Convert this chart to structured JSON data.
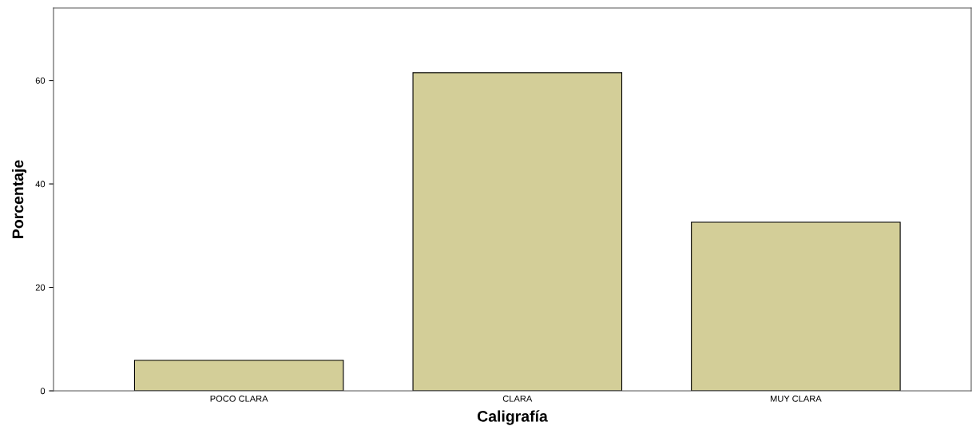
{
  "chart_data": {
    "type": "bar",
    "xlabel": "Caligrafía",
    "ylabel": "Porcentaje",
    "categories": [
      "POCO CLARA",
      "CLARA",
      "MUY CLARA"
    ],
    "values": [
      5.9,
      61.5,
      32.6
    ],
    "color": "#d3ce98",
    "ylim": [
      0,
      74
    ],
    "yticks": [
      0,
      20,
      40,
      60
    ],
    "grid": false,
    "legend": false
  }
}
